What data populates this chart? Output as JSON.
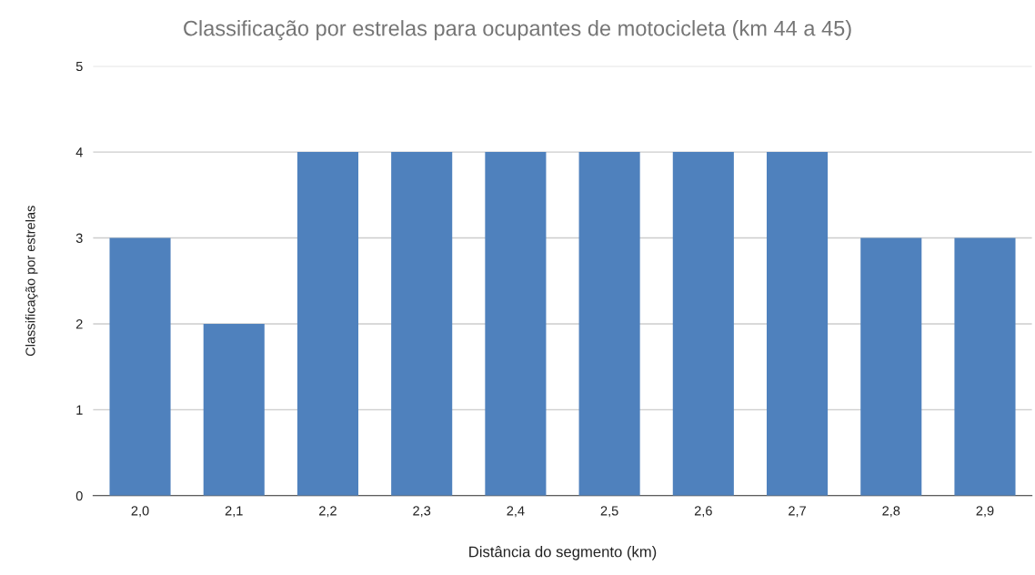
{
  "chart_data": {
    "type": "bar",
    "title": "Classificação por estrelas para ocupantes de motocicleta (km 44 a 45)",
    "xlabel": "Distância do segmento (km)",
    "ylabel": "Classificação por estrelas",
    "categories": [
      "2,0",
      "2,1",
      "2,2",
      "2,3",
      "2,4",
      "2,5",
      "2,6",
      "2,7",
      "2,8",
      "2,9"
    ],
    "values": [
      3,
      2,
      4,
      4,
      4,
      4,
      4,
      4,
      3,
      3
    ],
    "color": "#4f81bd",
    "ylim": [
      0,
      5
    ],
    "yticks": [
      0,
      1,
      2,
      3,
      4,
      5
    ],
    "grid": "y",
    "legend": false
  }
}
